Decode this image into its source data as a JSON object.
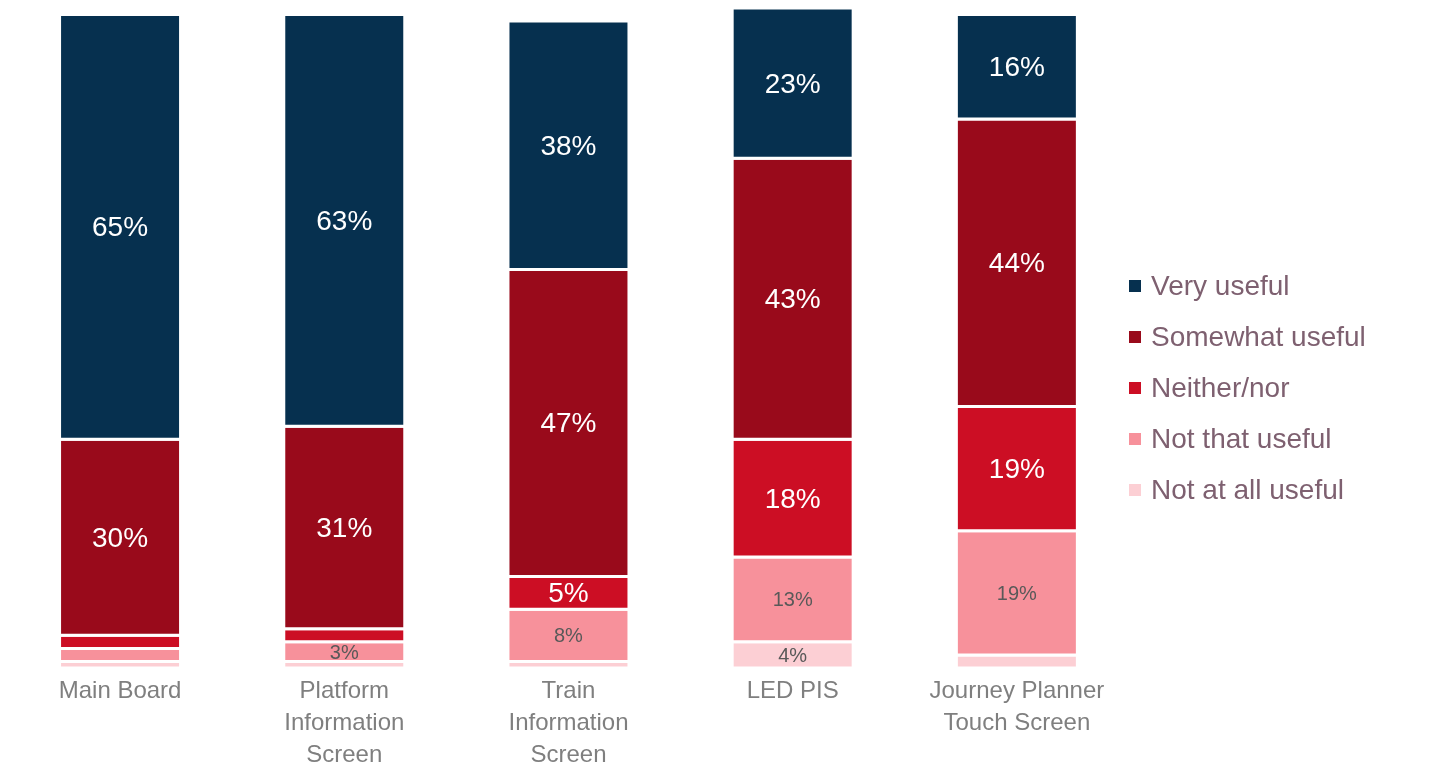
{
  "chart_data": {
    "type": "bar",
    "stacked": true,
    "categories": [
      "Main Board",
      "Platform Information Screen",
      "Train Information Screen",
      "LED PIS",
      "Journey Planner Touch Screen"
    ],
    "series": [
      {
        "name": "Not at all useful",
        "color": "#fccfd4",
        "values": [
          1,
          1,
          1,
          4,
          2
        ],
        "value_labels": [
          null,
          null,
          null,
          "4%",
          null
        ]
      },
      {
        "name": "Not that useful",
        "color": "#f7919b",
        "values": [
          2,
          3,
          8,
          13,
          19
        ],
        "value_labels": [
          null,
          "3%",
          "8%",
          "13%",
          "19%"
        ]
      },
      {
        "name": "Neither/nor",
        "color": "#cc0e24",
        "values": [
          2,
          2,
          5,
          18,
          19
        ],
        "value_labels": [
          null,
          null,
          "5%",
          "18%",
          "19%"
        ]
      },
      {
        "name": "Somewhat useful",
        "color": "#990a1b",
        "values": [
          30,
          31,
          47,
          43,
          44
        ],
        "value_labels": [
          "30%",
          "31%",
          "47%",
          "43%",
          "44%"
        ]
      },
      {
        "name": "Very useful",
        "color": "#06304f",
        "values": [
          65,
          63,
          38,
          23,
          16
        ],
        "value_labels": [
          "65%",
          "63%",
          "38%",
          "23%",
          "16%"
        ]
      }
    ],
    "legend": "right",
    "marker": "square",
    "grid": false
  }
}
